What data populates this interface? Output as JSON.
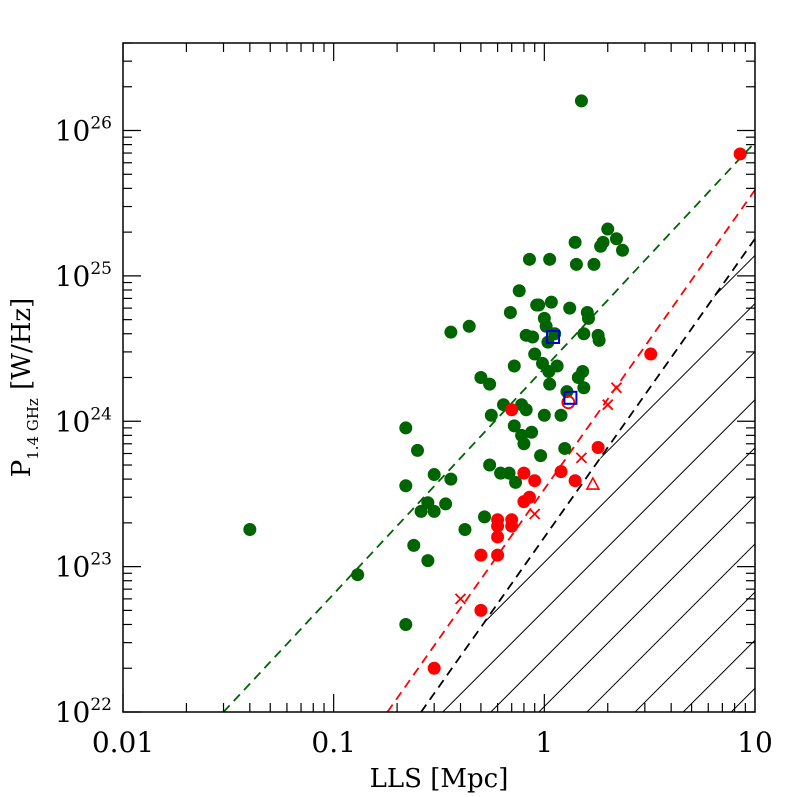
{
  "chart_data": {
    "type": "scatter",
    "x_scale": "log",
    "y_scale": "log",
    "xlim": [
      0.01,
      10
    ],
    "ylim": [
      1e+22,
      4e+26
    ],
    "xlabel": "LLS [Mpc]",
    "ylabel": {
      "main": "P",
      "sub": "1.4 GHz",
      "unit": "[W/Hz]"
    },
    "x_ticks": [
      {
        "value": 0.01,
        "label": "0.01"
      },
      {
        "value": 0.1,
        "label": "0.1"
      },
      {
        "value": 1,
        "label": "1"
      },
      {
        "value": 10,
        "label": "10"
      }
    ],
    "y_ticks": [
      {
        "value": 1e+22,
        "base": "10",
        "exp": "22"
      },
      {
        "value": 1e+23,
        "base": "10",
        "exp": "23"
      },
      {
        "value": 1e+24,
        "base": "10",
        "exp": "24"
      },
      {
        "value": 1e+25,
        "base": "10",
        "exp": "25"
      },
      {
        "value": 1e+26,
        "base": "10",
        "exp": "26"
      }
    ],
    "colors": {
      "green": "#006400",
      "red": "#ff0000",
      "blue": "#0000cc",
      "black": "#000000"
    },
    "series": [
      {
        "name": "green filled circles",
        "marker": "filled-circle",
        "color": "#006400",
        "points": [
          [
            0.04,
            1.8e+23
          ],
          [
            0.13,
            8.8e+22
          ],
          [
            0.22,
            4e+22
          ],
          [
            0.22,
            9e+23
          ],
          [
            0.22,
            3.6e+23
          ],
          [
            0.24,
            1.4e+23
          ],
          [
            0.25,
            6.3e+23
          ],
          [
            0.26,
            2.4e+23
          ],
          [
            0.28,
            1.1e+23
          ],
          [
            0.28,
            2.75e+23
          ],
          [
            0.3,
            2.4e+23
          ],
          [
            0.3,
            4.3e+23
          ],
          [
            0.34,
            2.7e+23
          ],
          [
            0.36,
            4e+23
          ],
          [
            0.36,
            4.1e+24
          ],
          [
            0.42,
            1.8e+23
          ],
          [
            0.44,
            4.5e+24
          ],
          [
            0.5,
            2e+24
          ],
          [
            0.52,
            2.2e+23
          ],
          [
            0.55,
            5e+23
          ],
          [
            0.55,
            1.8e+24
          ],
          [
            0.56,
            1.1e+24
          ],
          [
            0.62,
            4.4e+23
          ],
          [
            0.64,
            1.3e+24
          ],
          [
            0.68,
            4.4e+23
          ],
          [
            0.69,
            5.6e+24
          ],
          [
            0.72,
            2.4e+24
          ],
          [
            0.72,
            9.3e+23
          ],
          [
            0.73,
            3.8e+23
          ],
          [
            0.76,
            7.9e+24
          ],
          [
            0.78,
            8e+23
          ],
          [
            0.78,
            1.3e+24
          ],
          [
            0.8,
            7e+23
          ],
          [
            0.82,
            1.2e+24
          ],
          [
            0.82,
            3.9e+24
          ],
          [
            0.85,
            1.3e+25
          ],
          [
            0.87,
            8.4e+23
          ],
          [
            0.88,
            3.8e+24
          ],
          [
            0.9,
            2.9e+24
          ],
          [
            0.92,
            6.3e+24
          ],
          [
            0.94,
            6.3e+24
          ],
          [
            0.96,
            5.8e+23
          ],
          [
            0.98,
            2.5e+24
          ],
          [
            1.0,
            1.1e+24
          ],
          [
            1.0,
            5.1e+24
          ],
          [
            1.02,
            4.5e+24
          ],
          [
            1.04,
            3.5e+24
          ],
          [
            1.05,
            2.2e+24
          ],
          [
            1.06,
            1.8e+24
          ],
          [
            1.06,
            1.3e+25
          ],
          [
            1.08,
            6.6e+24
          ],
          [
            1.12,
            4e+24
          ],
          [
            1.15,
            2.4e+24
          ],
          [
            1.2,
            1.1e+24
          ],
          [
            1.25,
            6.5e+23
          ],
          [
            1.28,
            1.6e+24
          ],
          [
            1.32,
            6e+24
          ],
          [
            1.4,
            1.7e+25
          ],
          [
            1.42,
            1.2e+25
          ],
          [
            1.45,
            2e+24
          ],
          [
            1.5,
            1.6e+26
          ],
          [
            1.52,
            2.2e+24
          ],
          [
            1.54,
            4e+24
          ],
          [
            1.54,
            1.7e+24
          ],
          [
            1.6,
            5.6e+24
          ],
          [
            1.62,
            5.1e+24
          ],
          [
            1.72,
            1.2e+25
          ],
          [
            1.8,
            3.9e+24
          ],
          [
            1.82,
            3.6e+24
          ],
          [
            1.85,
            1.6e+25
          ],
          [
            1.9,
            1.7e+25
          ],
          [
            2.0,
            2.1e+25
          ],
          [
            2.2,
            1.8e+25
          ],
          [
            2.35,
            1.5e+25
          ]
        ]
      },
      {
        "name": "red filled circles",
        "marker": "filled-circle",
        "color": "#ff0000",
        "points": [
          [
            0.3,
            2e+22
          ],
          [
            0.5,
            1.2e+23
          ],
          [
            0.5,
            5e+22
          ],
          [
            0.6,
            1.2e+23
          ],
          [
            0.6,
            1.6e+23
          ],
          [
            0.6,
            1.9e+23
          ],
          [
            0.6,
            2.1e+23
          ],
          [
            0.7,
            1.9e+23
          ],
          [
            0.7,
            2.1e+23
          ],
          [
            0.7,
            1.2e+24
          ],
          [
            0.8,
            4.4e+23
          ],
          [
            0.8,
            2.8e+23
          ],
          [
            0.85,
            3e+23
          ],
          [
            0.9,
            3.9e+23
          ],
          [
            1.2,
            4.5e+23
          ],
          [
            1.4,
            3.9e+23
          ],
          [
            1.8,
            6.6e+23
          ],
          [
            3.2,
            2.9e+24
          ],
          [
            8.5,
            6.9e+25
          ]
        ]
      },
      {
        "name": "red crosses",
        "marker": "x",
        "color": "#ff0000",
        "points": [
          [
            0.4,
            6e+22
          ],
          [
            0.9,
            2.3e+23
          ],
          [
            1.5,
            5.6e+23
          ],
          [
            2.0,
            1.3e+24
          ],
          [
            2.2,
            1.7e+24
          ]
        ]
      },
      {
        "name": "red open circle",
        "marker": "open-circle",
        "color": "#ff0000",
        "points": [
          [
            1.3,
            1.35e+24
          ]
        ]
      },
      {
        "name": "red open triangle",
        "marker": "open-triangle",
        "color": "#ff0000",
        "points": [
          [
            1.7,
            3.7e+23
          ]
        ]
      },
      {
        "name": "blue open squares",
        "marker": "open-square",
        "color": "#0000cc",
        "points": [
          [
            1.1,
            3.8e+24
          ],
          [
            1.33,
            1.45e+24
          ]
        ]
      }
    ],
    "lines": [
      {
        "name": "green dashed limit",
        "color": "#006400",
        "style": "dashed",
        "from": [
          0.03,
          1e+22
        ],
        "to": [
          10,
          8.3e+25
        ]
      },
      {
        "name": "red dashed limit",
        "color": "#ff0000",
        "style": "dashed",
        "from": [
          0.18,
          1e+22
        ],
        "to": [
          10,
          3.9e+25
        ]
      },
      {
        "name": "black dashed limit",
        "color": "#000000",
        "style": "dashed",
        "from": [
          0.26,
          1e+22
        ],
        "to": [
          10,
          1.8e+25
        ]
      }
    ],
    "hatched_region": {
      "description": "excluded region below black dashed limit",
      "color": "#000000",
      "pattern": "diagonal"
    }
  }
}
